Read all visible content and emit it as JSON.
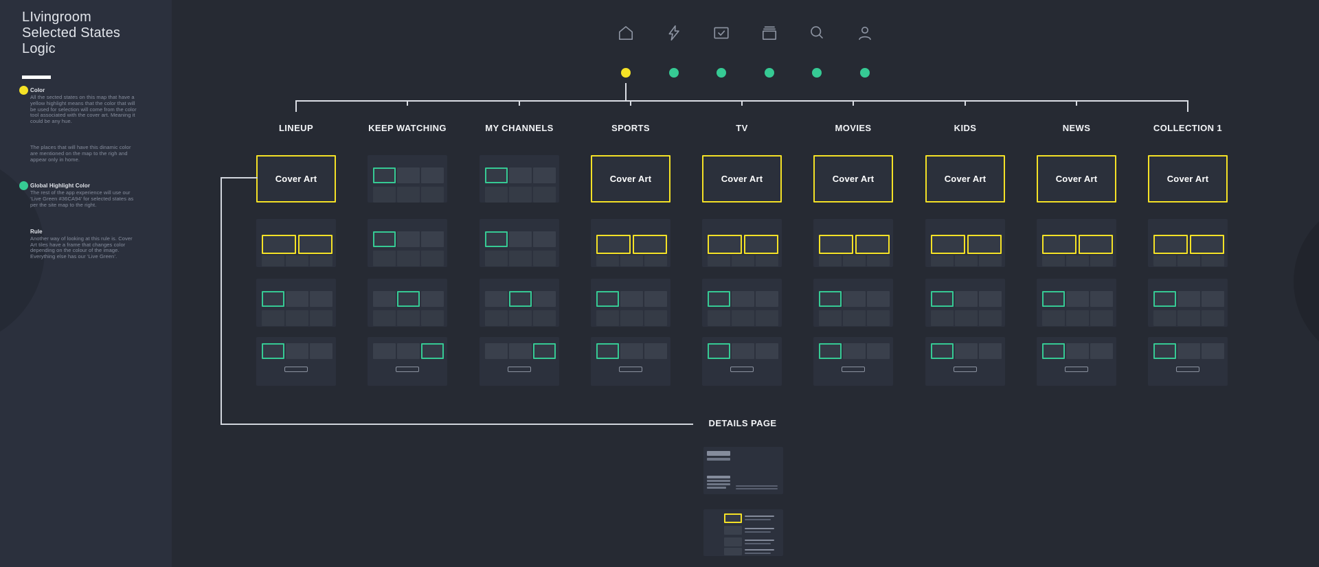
{
  "title": "LIvingroom Selected States Logic",
  "sidebar": {
    "sections": [
      {
        "dot_color": "#F5E226",
        "heading": "Color",
        "body": "All the sected states on this map that have a yellow highlight means that the color that will be used for selection will come from the color tool associated with the cover art. Meaning it could be any hue."
      },
      {
        "dot_color": null,
        "heading": null,
        "body": "The places that will have this dinamic color are mentioned on the map to the righ and appear only in home."
      },
      {
        "dot_color": "#36CA94",
        "heading": "Global Highlight Color",
        "body": "The rest of the app experience will use our ‘Live Green #36CA94’ for selected states as per the site map to the right."
      },
      {
        "dot_color": null,
        "heading": "Rule",
        "body": "Another way of looking at this rule is. Cover Art tiles have a frame that changes color depending on the colour of the image. Everything else has our ‘Live Green’."
      }
    ]
  },
  "nav": {
    "icons": [
      "home-icon",
      "lightning-icon",
      "checkbox-icon",
      "cards-icon",
      "search-icon",
      "profile-icon"
    ],
    "dot_colors": [
      "#F5E226",
      "#36CA94",
      "#36CA94",
      "#36CA94",
      "#36CA94",
      "#36CA94"
    ]
  },
  "map": {
    "cover_label": "Cover Art",
    "details_label": "DETAILS PAGE",
    "columns": [
      {
        "label": "LINEUP",
        "rows": [
          {
            "kind": "cover"
          },
          {
            "kind": "pair"
          },
          {
            "kind": "grid",
            "green": 0
          },
          {
            "kind": "strip",
            "green": 0
          }
        ]
      },
      {
        "label": "KEEP WATCHING",
        "rows": [
          {
            "kind": "grid",
            "green": 0
          },
          {
            "kind": "grid",
            "green": 0
          },
          {
            "kind": "grid",
            "green": 1
          },
          {
            "kind": "strip",
            "green": 2
          }
        ]
      },
      {
        "label": "MY CHANNELS",
        "rows": [
          {
            "kind": "grid",
            "green": 0
          },
          {
            "kind": "grid",
            "green": 0
          },
          {
            "kind": "grid",
            "green": 1
          },
          {
            "kind": "strip",
            "green": 2
          }
        ]
      },
      {
        "label": "SPORTS",
        "rows": [
          {
            "kind": "cover"
          },
          {
            "kind": "pair"
          },
          {
            "kind": "grid",
            "green": 0
          },
          {
            "kind": "strip",
            "green": 0
          }
        ]
      },
      {
        "label": "TV",
        "rows": [
          {
            "kind": "cover"
          },
          {
            "kind": "pair"
          },
          {
            "kind": "grid",
            "green": 0
          },
          {
            "kind": "strip",
            "green": 0
          }
        ]
      },
      {
        "label": "MOVIES",
        "rows": [
          {
            "kind": "cover"
          },
          {
            "kind": "pair"
          },
          {
            "kind": "grid",
            "green": 0
          },
          {
            "kind": "strip",
            "green": 0
          }
        ]
      },
      {
        "label": "KIDS",
        "rows": [
          {
            "kind": "cover"
          },
          {
            "kind": "pair"
          },
          {
            "kind": "grid",
            "green": 0
          },
          {
            "kind": "strip",
            "green": 0
          }
        ]
      },
      {
        "label": "NEWS",
        "rows": [
          {
            "kind": "cover"
          },
          {
            "kind": "pair"
          },
          {
            "kind": "grid",
            "green": 0
          },
          {
            "kind": "strip",
            "green": 0
          }
        ]
      },
      {
        "label": "COLLECTION 1",
        "rows": [
          {
            "kind": "cover"
          },
          {
            "kind": "pair"
          },
          {
            "kind": "grid",
            "green": 0
          },
          {
            "kind": "strip",
            "green": 0
          }
        ]
      }
    ]
  },
  "colors": {
    "accent_yellow": "#F5E226",
    "accent_green": "#36CA94",
    "background": "#262A33",
    "sidebar_background": "#2B303D"
  }
}
